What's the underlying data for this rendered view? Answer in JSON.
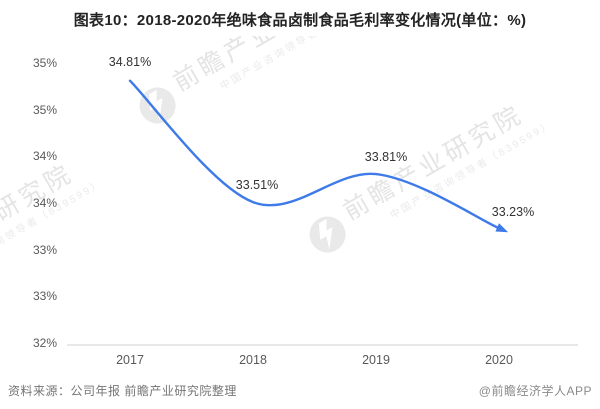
{
  "title": "图表10：2018-2020年绝味食品卤制食品毛利率变化情况(单位：%)",
  "chart_data": {
    "type": "line",
    "title": "2018-2020年绝味食品卤制食品毛利率变化情况",
    "unit": "%",
    "categories": [
      "2017",
      "2018",
      "2019",
      "2020"
    ],
    "series": [
      {
        "name": "卤制食品毛利率",
        "values": [
          34.81,
          33.51,
          33.81,
          33.23
        ]
      }
    ],
    "data_labels": [
      "34.81%",
      "33.51%",
      "33.81%",
      "33.23%"
    ],
    "ylim": [
      32,
      35
    ],
    "ytick_step": 0.5,
    "ytick_labels": [
      "35%",
      "35%",
      "34%",
      "34%",
      "33%",
      "33%",
      "32%"
    ],
    "grid": false,
    "legend": "none",
    "line_color": "#3E7BE8",
    "axis_line_color": "#d9d9d9",
    "arrow_end": true
  },
  "watermark": {
    "big_text": "前瞻产业研究院",
    "small_text": "中国产业咨询领导者（839599）",
    "logo": "qianzhan-circle-logo"
  },
  "footer": {
    "source": "资料来源：公司年报 前瞻产业研究院整理",
    "brand": "@前瞻经济学人APP"
  }
}
